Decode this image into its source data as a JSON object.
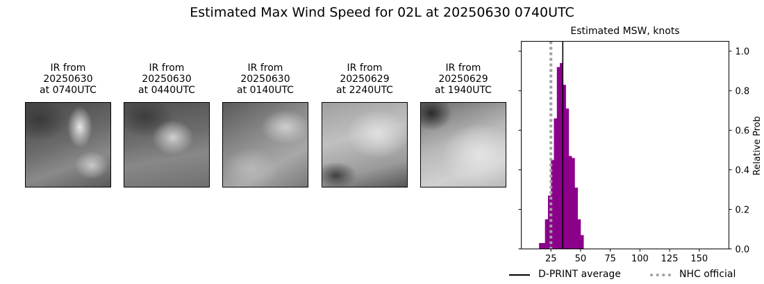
{
  "title": "Estimated Max Wind Speed for 02L at 20250630 0740UTC",
  "panels": [
    {
      "line1": "IR from",
      "line2": "20250630",
      "line3": "at 0740UTC"
    },
    {
      "line1": "IR from",
      "line2": "20250630",
      "line3": "at 0440UTC"
    },
    {
      "line1": "IR from",
      "line2": "20250630",
      "line3": "at 0140UTC"
    },
    {
      "line1": "IR from",
      "line2": "20250629",
      "line3": "at 2240UTC"
    },
    {
      "line1": "IR from",
      "line2": "20250629",
      "line3": "at 1940UTC"
    }
  ],
  "chart_data": {
    "type": "bar",
    "title": "Estimated MSW, knots",
    "ylabel": "Relative Prob",
    "xlim": [
      0,
      175
    ],
    "ylim": [
      0,
      1.05
    ],
    "xticks": [
      25,
      50,
      75,
      100,
      125,
      150
    ],
    "yticks": [
      0.0,
      0.2,
      0.4,
      0.6,
      0.8,
      1.0
    ],
    "bin_width": 2.5,
    "bins": [
      {
        "x0": 15,
        "value": 0.03
      },
      {
        "x0": 17.5,
        "value": 0.03
      },
      {
        "x0": 20,
        "value": 0.15
      },
      {
        "x0": 22.5,
        "value": 0.27
      },
      {
        "x0": 25,
        "value": 0.45
      },
      {
        "x0": 27.5,
        "value": 0.66
      },
      {
        "x0": 30,
        "value": 0.92
      },
      {
        "x0": 32.5,
        "value": 0.94
      },
      {
        "x0": 35,
        "value": 0.83
      },
      {
        "x0": 37.5,
        "value": 0.71
      },
      {
        "x0": 40,
        "value": 0.47
      },
      {
        "x0": 42.5,
        "value": 0.46
      },
      {
        "x0": 45,
        "value": 0.31
      },
      {
        "x0": 47.5,
        "value": 0.15
      },
      {
        "x0": 50,
        "value": 0.07
      }
    ],
    "bar_color": "#8b008b",
    "dprint_average": 35,
    "nhc_official": 25,
    "legend": {
      "dprint_label": "D-PRINT average",
      "nhc_label": "NHC official"
    }
  }
}
